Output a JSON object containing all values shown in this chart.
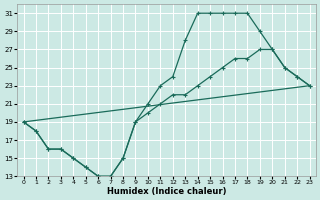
{
  "xlabel": "Humidex (Indice chaleur)",
  "bg_color": "#cce9e4",
  "line_color": "#1a6b5a",
  "grid_color": "#ffffff",
  "xlim": [
    -0.5,
    23.5
  ],
  "ylim": [
    13,
    32
  ],
  "xticks": [
    0,
    1,
    2,
    3,
    4,
    5,
    6,
    7,
    8,
    9,
    10,
    11,
    12,
    13,
    14,
    15,
    16,
    17,
    18,
    19,
    20,
    21,
    22,
    23
  ],
  "yticks": [
    13,
    15,
    17,
    19,
    21,
    23,
    25,
    27,
    29,
    31
  ],
  "curve1_x": [
    0,
    1,
    2,
    3,
    4,
    5,
    6,
    7,
    8,
    9,
    10,
    11,
    12,
    13,
    14,
    15,
    16,
    17,
    18,
    19,
    20,
    21,
    22,
    23
  ],
  "curve1_y": [
    19,
    18,
    16,
    16,
    15,
    14,
    13,
    13,
    15,
    19,
    21,
    23,
    24,
    28,
    31,
    31,
    31,
    31,
    31,
    29,
    27,
    25,
    24,
    23
  ],
  "curve2_x": [
    0,
    1,
    2,
    3,
    4,
    5,
    6,
    7,
    8,
    9,
    10,
    11,
    12,
    13,
    14,
    15,
    16,
    17,
    18,
    19,
    20,
    21,
    22,
    23
  ],
  "curve2_y": [
    19,
    18,
    16,
    16,
    15,
    14,
    13,
    13,
    15,
    19,
    20,
    21,
    22,
    22,
    23,
    24,
    25,
    26,
    26,
    27,
    27,
    25,
    24,
    23
  ],
  "curve3_x": [
    0,
    23
  ],
  "curve3_y": [
    19,
    23
  ]
}
